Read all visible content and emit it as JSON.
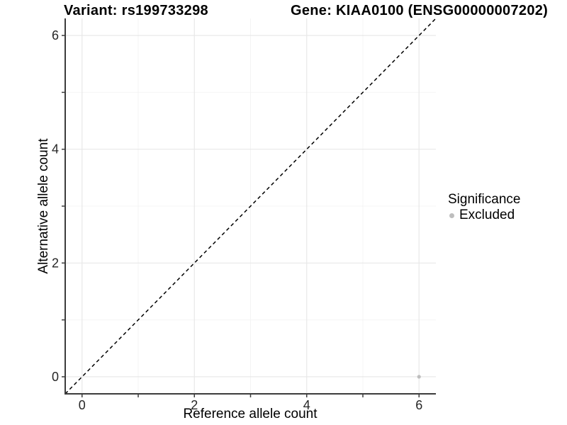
{
  "header": {
    "variant_title": "Variant: rs199733298",
    "gene_title": "Gene: KIAA0100 (ENSG00000007202)"
  },
  "legend": {
    "title": "Significance",
    "items": [
      {
        "label": "Excluded",
        "color": "#bebebe",
        "marker": "circle"
      }
    ]
  },
  "chart_data": {
    "type": "scatter",
    "title": "Variant: rs199733298   Gene: KIAA0100 (ENSG00000007202)",
    "xlabel": "Reference allele count",
    "ylabel": "Alternative allele count",
    "xlim": [
      -0.3,
      6.3
    ],
    "ylim": [
      -0.3,
      6.3
    ],
    "x_ticks": {
      "major": [
        0,
        2,
        4,
        6
      ],
      "minor": [
        1,
        3,
        5
      ]
    },
    "y_ticks": {
      "major": [
        0,
        2,
        4,
        6
      ],
      "minor": [
        1,
        3,
        5
      ]
    },
    "grid": "major-and-minor",
    "legend_position": "right",
    "series": [
      {
        "name": "Excluded",
        "marker": "circle",
        "color": "#bebebe",
        "points": [
          {
            "x": 6,
            "y": 0
          }
        ]
      }
    ],
    "reference_line": {
      "slope": 1,
      "intercept": 0,
      "style": "dashed",
      "color": "#000000"
    }
  },
  "colors": {
    "background": "#ffffff",
    "axis_line": "#3c3c3c",
    "tick_mark": "#3c3c3c",
    "tick_label": "#262626",
    "grid_major": "#e8e8e8",
    "grid_minor": "#f4f4f4"
  }
}
